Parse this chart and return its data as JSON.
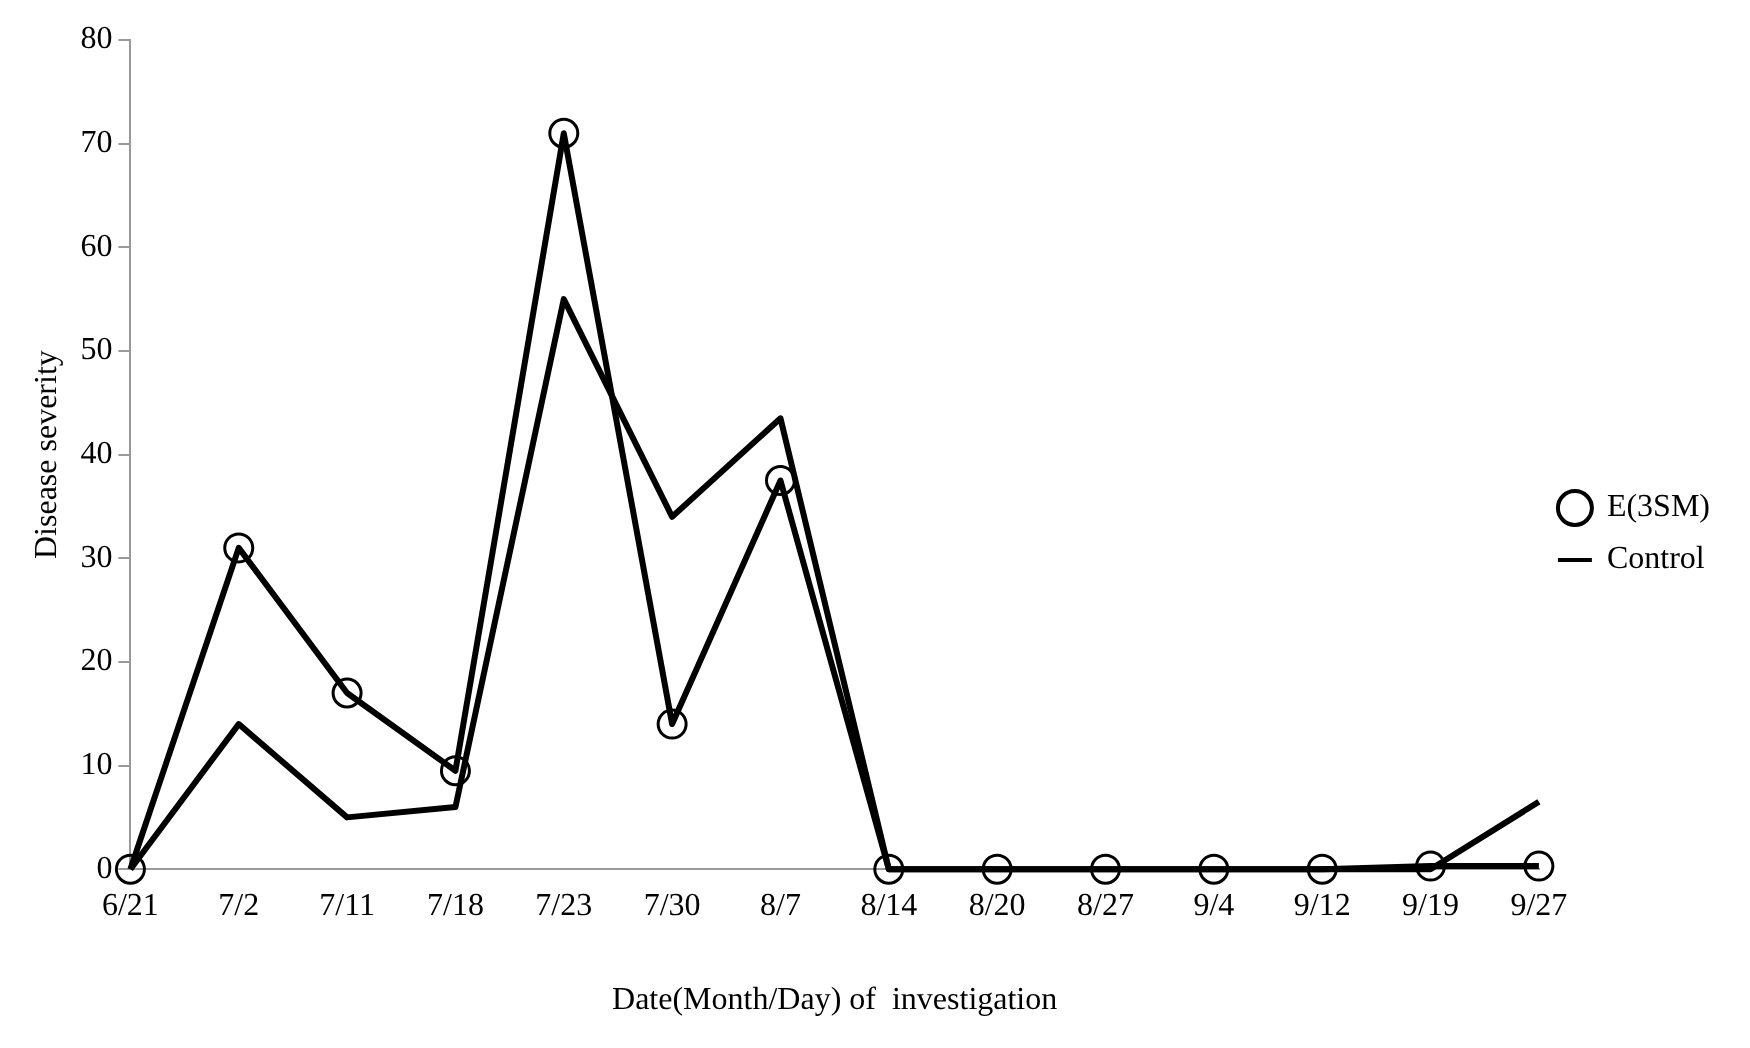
{
  "chart_data": {
    "type": "line",
    "xlabel": "Date(Month/Day) of  investigation",
    "ylabel": "Disease severity",
    "categories": [
      "6/21",
      "7/2",
      "7/11",
      "7/18",
      "7/23",
      "7/30",
      "8/7",
      "8/14",
      "8/20",
      "8/27",
      "9/4",
      "9/12",
      "9/19",
      "9/27"
    ],
    "series": [
      {
        "name": "E(3SM)",
        "color": "#000000",
        "marker": "circle",
        "values": [
          0,
          31,
          17,
          9.5,
          71,
          14,
          37.5,
          0,
          0,
          0,
          0,
          0,
          0.3,
          0.3
        ]
      },
      {
        "name": "Control",
        "color": "#000000",
        "marker": "none",
        "values": [
          0,
          14,
          5,
          6,
          55,
          34,
          43.5,
          0,
          0,
          0,
          0,
          0,
          0,
          6.5
        ]
      }
    ],
    "ylim": [
      0,
      80
    ],
    "yticks": [
      0,
      10,
      20,
      30,
      40,
      50,
      60,
      70,
      80
    ],
    "grid": false,
    "legend": "right",
    "line_style": "solid"
  }
}
